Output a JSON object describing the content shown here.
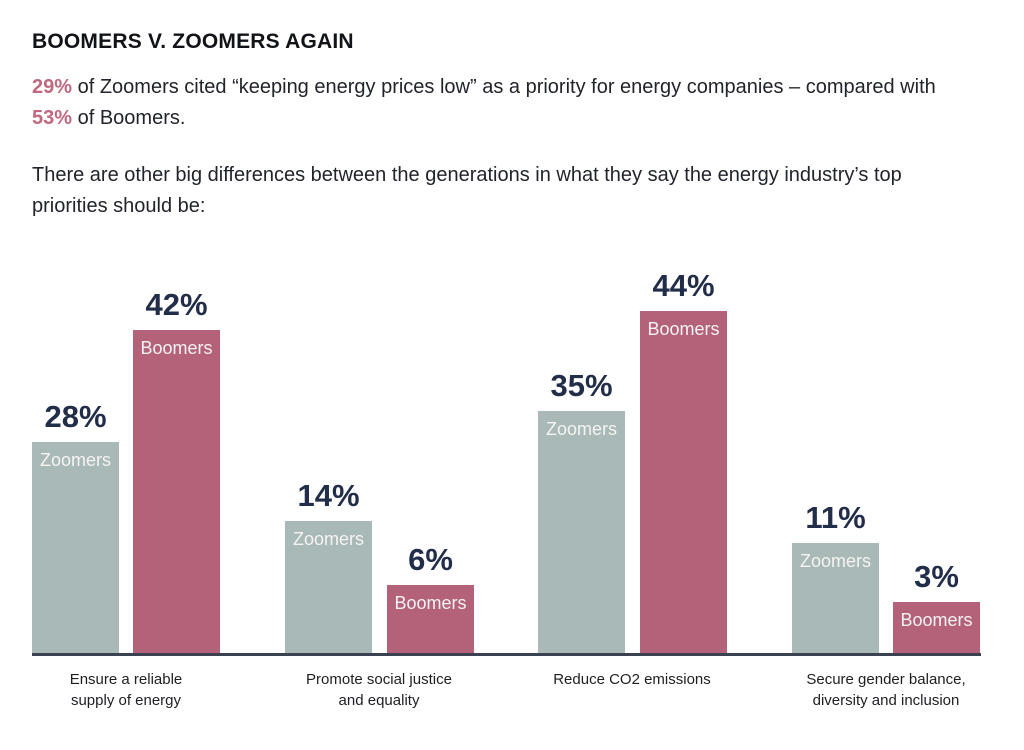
{
  "page": {
    "title": "BOOMERS V. ZOOMERS AGAIN",
    "intro": {
      "stat1": "29%",
      "text1": " of Zoomers cited “keeping energy prices low” as a priority for energy companies – compared with ",
      "stat2": "53%",
      "text2": " of Boomers."
    },
    "subtext": "There are other big differences between the generations in what they say the energy industry’s top priorities should be:"
  },
  "colors": {
    "accent_text": "#c0687f",
    "zoomers_bar": "#a8b9b7",
    "boomers_bar": "#b4617a",
    "value_label": "#222d49",
    "inbar_label": "#f5f4f2",
    "axis": "#3a4150"
  },
  "chart_data": {
    "type": "bar",
    "title": "",
    "categories": [
      "Ensure a reliable supply of energy",
      "Promote social justice and equality",
      "Reduce CO2 emissions",
      "Secure gender balance, diversity and inclusion"
    ],
    "categories_lines": [
      [
        "Ensure a reliable",
        "supply of energy"
      ],
      [
        "Promote social justice",
        "and equality"
      ],
      [
        "Reduce CO2 emissions"
      ],
      [
        "Secure gender balance,",
        "diversity and inclusion"
      ]
    ],
    "series": [
      {
        "name": "Zoomers",
        "color": "#a8b9b7",
        "values": [
          28,
          14,
          35,
          11
        ],
        "labels": [
          "28%",
          "14%",
          "35%",
          "11%"
        ]
      },
      {
        "name": "Boomers",
        "color": "#b4617a",
        "values": [
          42,
          6,
          44,
          3
        ],
        "labels": [
          "42%",
          "6%",
          "44%",
          "3%"
        ]
      }
    ],
    "value_suffix": "%",
    "legend": "labels inside bars",
    "axis": {
      "y_axis_hidden": true,
      "baseline_shown": true,
      "grid": false
    },
    "ylim": [
      0,
      50
    ]
  }
}
